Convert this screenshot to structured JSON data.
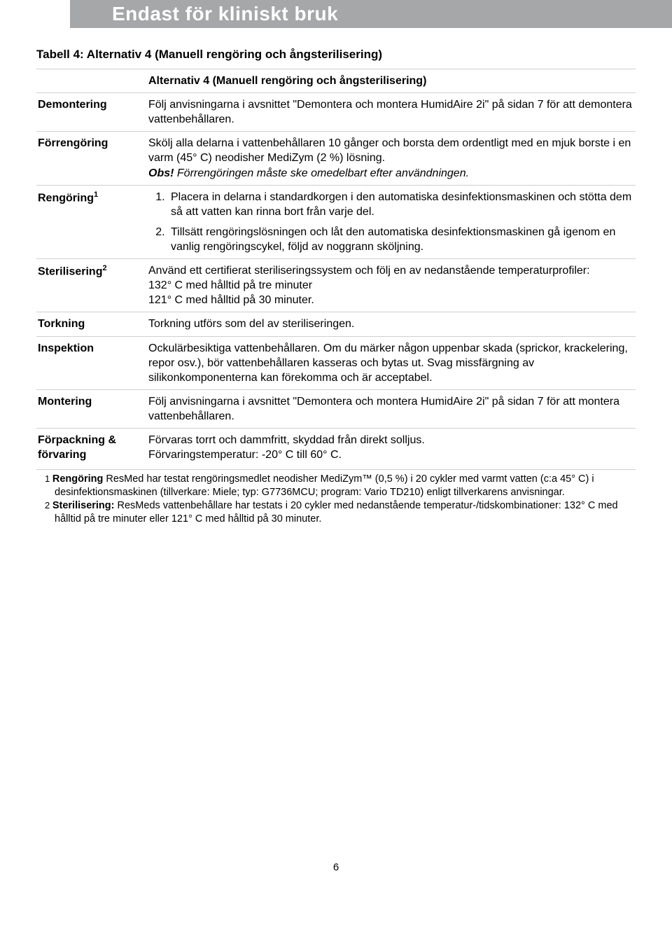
{
  "banner": {
    "text": "Endast för kliniskt bruk"
  },
  "table_title": "Tabell 4: Alternativ 4 (Manuell rengöring och ångsterilisering)",
  "header_row": {
    "label": "",
    "value": "Alternativ 4 (Manuell rengöring och ångsterilisering)"
  },
  "rows": {
    "demontering": {
      "label": "Demontering",
      "text": "Följ anvisningarna i avsnittet \"Demontera och montera HumidAire 2i\" på sidan 7 för att demontera vattenbehållaren."
    },
    "forrengoring": {
      "label": "Förrengöring",
      "text": "Skölj alla delarna i vattenbehållaren 10 gånger och borsta dem ordentligt med en mjuk borste i en varm (45° C) neodisher MediZym (2 %) lösning.",
      "obs_prefix": "Obs!",
      "obs_text": " Förrengöringen måste ske omedelbart efter användningen."
    },
    "rengoring": {
      "label": "Rengöring",
      "sup": "1",
      "steps": [
        "Placera in delarna i standardkorgen i den automatiska desinfektionsmaskinen och stötta dem så att vatten kan rinna bort från varje del.",
        "Tillsätt rengöringslösningen och låt den automatiska desinfektionsmaskinen gå igenom en vanlig rengöringscykel, följd av noggrann sköljning."
      ]
    },
    "sterilisering": {
      "label": "Sterilisering",
      "sup": "2",
      "line1": "Använd ett certifierat steriliseringssystem och följ en av nedanstående temperaturprofiler:",
      "line2": "132° C med hålltid på tre minuter",
      "line3": "121° C med hålltid på 30 minuter."
    },
    "torkning": {
      "label": "Torkning",
      "text": "Torkning utförs som del av steriliseringen."
    },
    "inspektion": {
      "label": "Inspektion",
      "text": "Ockulärbesiktiga vattenbehållaren. Om du märker någon uppenbar skada (sprickor, krackelering, repor osv.), bör vattenbehållaren kasseras och bytas ut. Svag missfärgning av silikonkomponenterna kan förekomma och är acceptabel."
    },
    "montering": {
      "label": "Montering",
      "text": "Följ anvisningarna i avsnittet \"Demontera och montera HumidAire 2i\" på sidan 7 för att montera vattenbehållaren."
    },
    "forvaring": {
      "label_l1": "Förpackning &",
      "label_l2": "förvaring",
      "line1": "Förvaras torrt och dammfritt, skyddad från direkt solljus.",
      "line2": "Förvaringstemperatur: -20° C till 60° C."
    }
  },
  "footnotes": {
    "f1_num": "1 ",
    "f1_label": "Rengöring ",
    "f1_text": "ResMed har testat rengöringsmedlet neodisher MediZym™ (0,5 %) i 20 cykler med varmt vatten (c:a 45° C) i desinfektionsmaskinen (tillverkare: Miele; typ: G7736MCU; program: Vario TD210) enligt tillverkarens anvisningar.",
    "f2_num": "2 ",
    "f2_label": "Sterilisering: ",
    "f2_text": "ResMeds vattenbehållare har testats i 20 cykler med nedanstående temperatur-/tidskombinationer: 132° C med hålltid på tre minuter eller 121° C med hålltid på 30 minuter."
  },
  "page_number": "6"
}
